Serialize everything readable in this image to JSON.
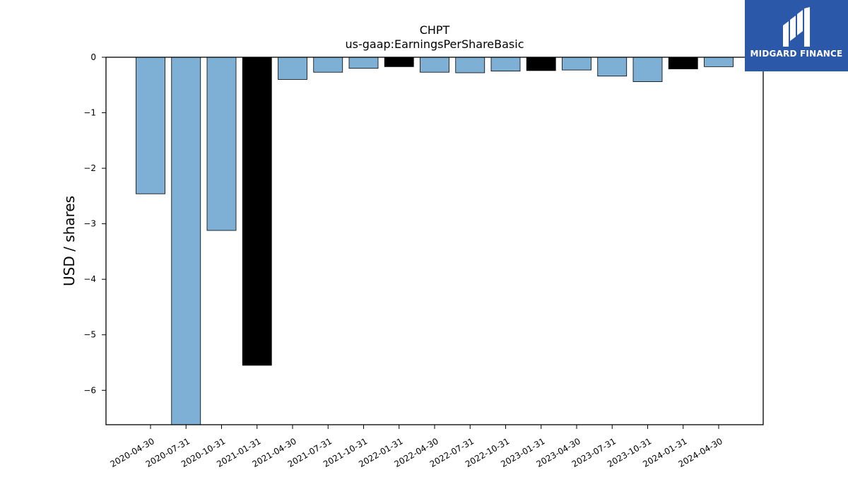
{
  "brand": {
    "name": "MIDGARD FINANCE",
    "bg_color": "#2b58a8",
    "icon": "midgard-logo-icon"
  },
  "chart_data": {
    "type": "bar",
    "title": "CHPT",
    "subtitle": "us-gaap:EarningsPerShareBasic",
    "xlabel": "",
    "ylabel": "USD / shares",
    "ylim": [
      -6.62,
      0
    ],
    "yticks": [
      0,
      -1,
      -2,
      -3,
      -4,
      -5,
      -6
    ],
    "ytick_labels": [
      "0",
      "−1",
      "−2",
      "−3",
      "−4",
      "−5",
      "−6"
    ],
    "grid": false,
    "categories": [
      "2020-04-30",
      "2020-07-31",
      "2020-10-31",
      "2021-01-31",
      "2021-04-30",
      "2021-07-31",
      "2021-10-31",
      "2022-01-31",
      "2022-04-30",
      "2022-07-31",
      "2022-10-31",
      "2023-01-31",
      "2023-04-30",
      "2023-07-31",
      "2023-10-31",
      "2024-01-31",
      "2024-04-30"
    ],
    "values": [
      -2.46,
      -6.62,
      -3.12,
      -5.55,
      -0.4,
      -0.27,
      -0.2,
      -0.17,
      -0.27,
      -0.28,
      -0.25,
      -0.24,
      -0.23,
      -0.34,
      -0.44,
      -0.21,
      -0.17
    ],
    "bar_colors": [
      "#7eb0d5",
      "#7eb0d5",
      "#7eb0d5",
      "#000000",
      "#7eb0d5",
      "#7eb0d5",
      "#7eb0d5",
      "#000000",
      "#7eb0d5",
      "#7eb0d5",
      "#7eb0d5",
      "#000000",
      "#7eb0d5",
      "#7eb0d5",
      "#7eb0d5",
      "#000000",
      "#7eb0d5"
    ]
  }
}
